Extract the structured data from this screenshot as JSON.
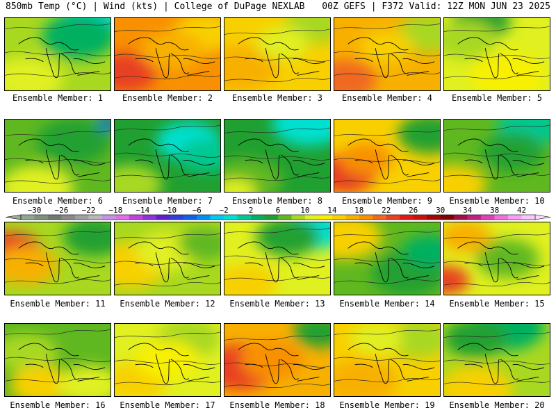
{
  "header": {
    "left": "850mb Temp (°C) | Wind (kts) | College of DuPage NEXLAB",
    "right": "00Z GEFS | F372 Valid: 12Z MON JUN 23 2025"
  },
  "colorbar": {
    "ticks": [
      "-30",
      "-26",
      "-22",
      "-18",
      "-14",
      "-10",
      "-6",
      "-2",
      "2",
      "6",
      "10",
      "14",
      "18",
      "22",
      "26",
      "30",
      "34",
      "38",
      "42"
    ],
    "colors": [
      "#8fa68f",
      "#7f8f7f",
      "#6f7a6f",
      "#8a8a8a",
      "#a0a0a0",
      "#b8b8b8",
      "#c890e8",
      "#e070e8",
      "#c040e0",
      "#9030d8",
      "#6020d0",
      "#3040d8",
      "#1060e8",
      "#0090f0",
      "#00c8f0",
      "#00e0d0",
      "#00c890",
      "#00b060",
      "#20a030",
      "#60b820",
      "#a8d820",
      "#e0f020",
      "#f8f000",
      "#f8d000",
      "#f8b000",
      "#f89000",
      "#f06820",
      "#e84020",
      "#e01818",
      "#c81010",
      "#a00808",
      "#800000",
      "#a01040",
      "#c02080",
      "#e040b8",
      "#f070e0",
      "#f8a0f0",
      "#f8c8f8"
    ]
  },
  "panels": [
    {
      "caption": "Ensemble Member: 1",
      "base": "#a8d820",
      "blobs": [
        [
          "#00e0d0",
          0.8,
          0.05,
          0.28
        ],
        [
          "#00b060",
          0.7,
          0.25,
          0.35
        ],
        [
          "#e0f020",
          0.2,
          0.85,
          0.35
        ]
      ]
    },
    {
      "caption": "Ensemble Member: 2",
      "base": "#f89000",
      "blobs": [
        [
          "#e84020",
          0.1,
          0.75,
          0.3
        ],
        [
          "#f8d000",
          0.85,
          0.2,
          0.3
        ],
        [
          "#f8b000",
          0.55,
          0.45,
          0.3
        ]
      ]
    },
    {
      "caption": "Ensemble Member: 3",
      "base": "#f8d000",
      "blobs": [
        [
          "#f8b000",
          0.15,
          0.7,
          0.35
        ],
        [
          "#a8d820",
          0.85,
          0.1,
          0.28
        ],
        [
          "#e0f020",
          0.55,
          0.35,
          0.25
        ]
      ]
    },
    {
      "caption": "Ensemble Member: 4",
      "base": "#f8b000",
      "blobs": [
        [
          "#f06820",
          0.1,
          0.85,
          0.3
        ],
        [
          "#a8d820",
          0.9,
          0.2,
          0.3
        ],
        [
          "#f8d000",
          0.5,
          0.4,
          0.25
        ]
      ]
    },
    {
      "caption": "Ensemble Member: 5",
      "base": "#e0f020",
      "blobs": [
        [
          "#20a030",
          0.35,
          0.05,
          0.28
        ],
        [
          "#a8d820",
          0.2,
          0.3,
          0.3
        ],
        [
          "#f8f000",
          0.6,
          0.8,
          0.35
        ]
      ]
    },
    {
      "caption": "Ensemble Member: 6",
      "base": "#60b820",
      "blobs": [
        [
          "#20a030",
          0.65,
          0.3,
          0.35
        ],
        [
          "#1060e8",
          0.98,
          0.05,
          0.1
        ],
        [
          "#e0f020",
          0.3,
          0.95,
          0.35
        ]
      ]
    },
    {
      "caption": "Ensemble Member: 7",
      "base": "#20a030",
      "blobs": [
        [
          "#00e0d0",
          0.7,
          0.3,
          0.3
        ],
        [
          "#00c890",
          0.85,
          0.5,
          0.25
        ],
        [
          "#a8d820",
          0.15,
          0.9,
          0.3
        ]
      ]
    },
    {
      "caption": "Ensemble Member: 8",
      "base": "#20a030",
      "blobs": [
        [
          "#00e0d0",
          0.8,
          0.05,
          0.35
        ],
        [
          "#60b820",
          0.2,
          0.85,
          0.35
        ],
        [
          "#e0f020",
          0.1,
          1.0,
          0.2
        ]
      ]
    },
    {
      "caption": "Ensemble Member: 9",
      "base": "#f8d000",
      "blobs": [
        [
          "#e84020",
          0.1,
          0.75,
          0.3
        ],
        [
          "#20a030",
          0.9,
          0.2,
          0.3
        ],
        [
          "#f89000",
          0.3,
          0.55,
          0.25
        ]
      ]
    },
    {
      "caption": "Ensemble Member: 10",
      "base": "#60b820",
      "blobs": [
        [
          "#00c890",
          0.8,
          0.1,
          0.3
        ],
        [
          "#20a030",
          0.65,
          0.45,
          0.3
        ],
        [
          "#f8d000",
          0.1,
          0.9,
          0.3
        ]
      ]
    },
    {
      "caption": "Ensemble Member: 11",
      "base": "#a8d820",
      "blobs": [
        [
          "#e84020",
          0.05,
          0.4,
          0.3
        ],
        [
          "#f8b000",
          0.2,
          0.6,
          0.3
        ],
        [
          "#20a030",
          0.85,
          0.2,
          0.3
        ]
      ]
    },
    {
      "caption": "Ensemble Member: 12",
      "base": "#a8d820",
      "blobs": [
        [
          "#f8d000",
          0.15,
          0.6,
          0.35
        ],
        [
          "#e0f020",
          0.5,
          0.4,
          0.3
        ],
        [
          "#60b820",
          0.85,
          0.3,
          0.25
        ]
      ]
    },
    {
      "caption": "Ensemble Member: 13",
      "base": "#e0f020",
      "blobs": [
        [
          "#00e0d0",
          0.85,
          0.1,
          0.3
        ],
        [
          "#20a030",
          0.6,
          0.2,
          0.3
        ],
        [
          "#f8d000",
          0.2,
          0.85,
          0.3
        ]
      ]
    },
    {
      "caption": "Ensemble Member: 14",
      "base": "#60b820",
      "blobs": [
        [
          "#f8d000",
          0.1,
          0.2,
          0.35
        ],
        [
          "#20a030",
          0.7,
          0.7,
          0.35
        ],
        [
          "#00b060",
          0.9,
          0.4,
          0.25
        ]
      ]
    },
    {
      "caption": "Ensemble Member: 15",
      "base": "#e0f020",
      "blobs": [
        [
          "#e84020",
          0.02,
          0.8,
          0.22
        ],
        [
          "#60b820",
          0.6,
          0.5,
          0.3
        ],
        [
          "#f8b000",
          0.2,
          0.2,
          0.25
        ]
      ]
    },
    {
      "caption": "Ensemble Member: 16",
      "base": "#60b820",
      "blobs": [
        [
          "#a8d820",
          0.2,
          0.4,
          0.3
        ],
        [
          "#f8d000",
          0.35,
          0.85,
          0.3
        ],
        [
          "#e0f020",
          0.8,
          0.85,
          0.3
        ]
      ]
    },
    {
      "caption": "Ensemble Member: 17",
      "base": "#e0f020",
      "blobs": [
        [
          "#f8d000",
          0.2,
          0.8,
          0.3
        ],
        [
          "#a8d820",
          0.7,
          0.2,
          0.3
        ],
        [
          "#f8f000",
          0.5,
          0.5,
          0.3
        ]
      ]
    },
    {
      "caption": "Ensemble Member: 18",
      "base": "#f8b000",
      "blobs": [
        [
          "#e84020",
          0.15,
          0.6,
          0.35
        ],
        [
          "#20a030",
          0.9,
          0.1,
          0.25
        ],
        [
          "#f89000",
          0.45,
          0.5,
          0.3
        ]
      ]
    },
    {
      "caption": "Ensemble Member: 19",
      "base": "#f8d000",
      "blobs": [
        [
          "#f8b000",
          0.25,
          0.8,
          0.35
        ],
        [
          "#a8d820",
          0.8,
          0.2,
          0.3
        ],
        [
          "#e0f020",
          0.4,
          0.2,
          0.25
        ]
      ]
    },
    {
      "caption": "Ensemble Member: 20",
      "base": "#a8d820",
      "blobs": [
        [
          "#00b060",
          0.6,
          0.05,
          0.35
        ],
        [
          "#20a030",
          0.3,
          0.2,
          0.3
        ],
        [
          "#f8d000",
          0.3,
          0.9,
          0.35
        ]
      ]
    }
  ]
}
